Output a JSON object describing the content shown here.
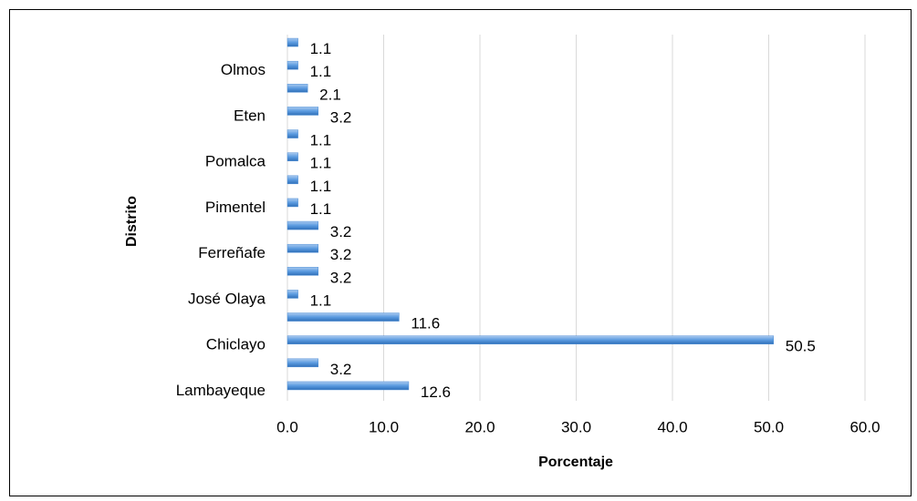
{
  "chart_data": {
    "type": "bar",
    "orientation": "horizontal",
    "x_label": "Porcentaje",
    "y_label": "Distrito",
    "categories": [
      "Lambayeque",
      null,
      "Chiclayo",
      null,
      "José Olaya",
      null,
      "Ferreñafe",
      null,
      "Pimentel",
      null,
      "Pomalca",
      null,
      "Eten",
      null,
      "Olmos",
      null
    ],
    "values": [
      12.6,
      3.2,
      50.5,
      11.6,
      1.1,
      3.2,
      3.2,
      3.2,
      1.1,
      1.1,
      1.1,
      1.1,
      3.2,
      2.1,
      1.1,
      1.1
    ],
    "color": "#4f8fd6",
    "xlim": [
      0,
      60
    ],
    "xticks": [
      {
        "value": 0,
        "label": "0.0"
      },
      {
        "value": 10,
        "label": "10.0"
      },
      {
        "value": 20,
        "label": "20.0"
      },
      {
        "value": 30,
        "label": "30.0"
      },
      {
        "value": 40,
        "label": "40.0"
      },
      {
        "value": 50,
        "label": "50.0"
      },
      {
        "value": 60,
        "label": "60.0"
      }
    ],
    "grid": true
  }
}
